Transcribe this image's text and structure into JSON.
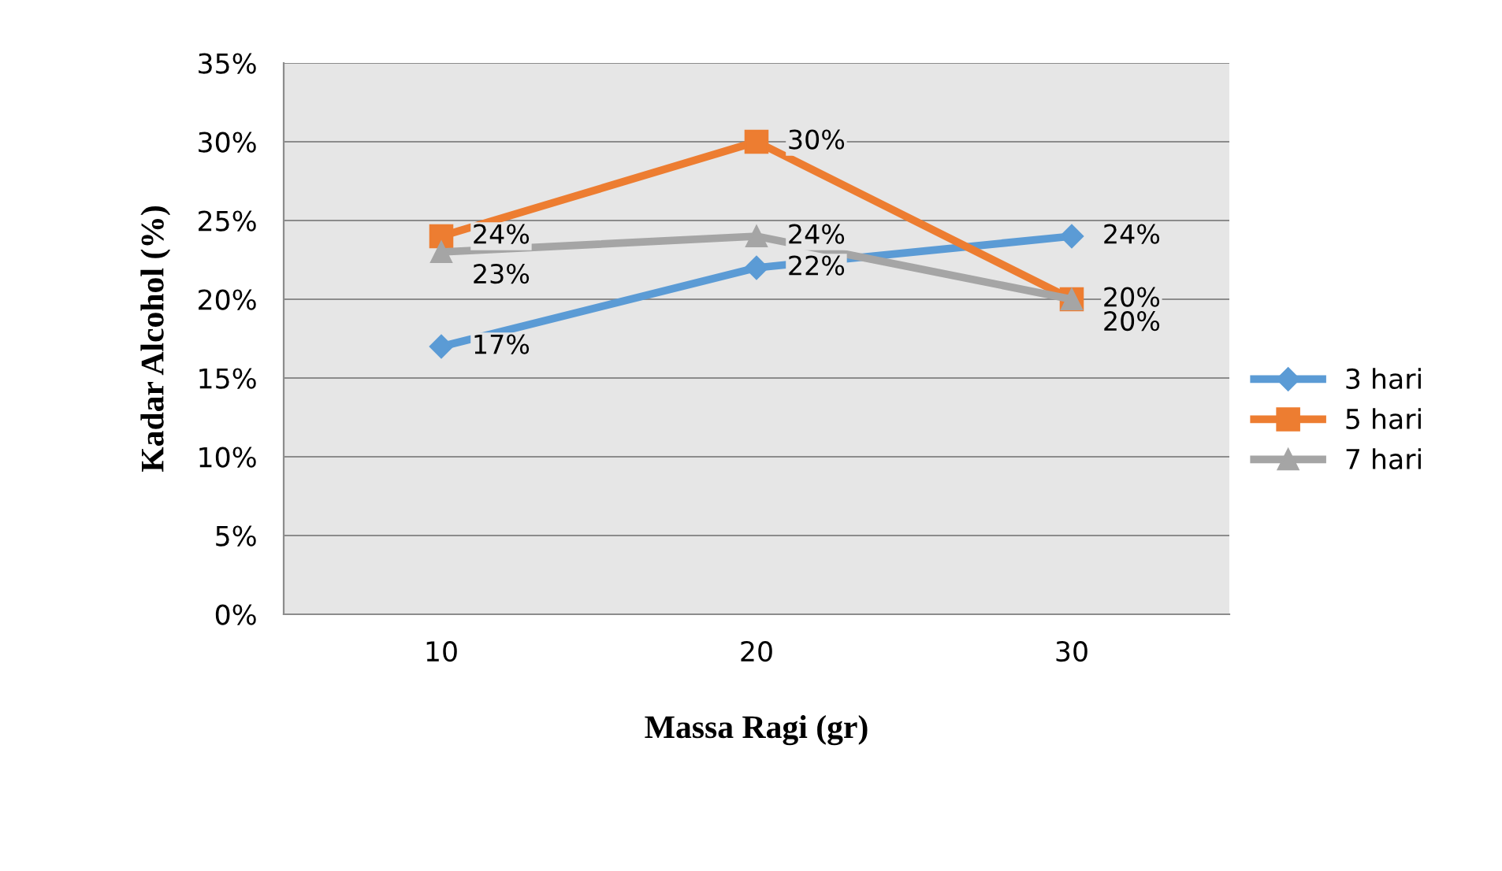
{
  "chart_data": {
    "type": "line",
    "xlabel": "Massa Ragi (gr)",
    "ylabel": "Kadar Alcohol (%)",
    "categories": [
      "10",
      "20",
      "30"
    ],
    "series": [
      {
        "name": "3 hari",
        "color": "#5b9bd5",
        "marker": "diamond",
        "values": [
          17,
          22,
          24
        ],
        "value_labels": [
          "17%",
          "22%",
          "24%"
        ]
      },
      {
        "name": "5 hari",
        "color": "#ed7d31",
        "marker": "square",
        "values": [
          24,
          30,
          20
        ],
        "value_labels": [
          "24%",
          "30%",
          "20%"
        ]
      },
      {
        "name": "7 hari",
        "color": "#a5a5a5",
        "marker": "triangle",
        "values": [
          23,
          24,
          20
        ],
        "value_labels": [
          "23%",
          "24%",
          "20%"
        ]
      }
    ],
    "ylim": [
      0,
      35
    ],
    "yticks": [
      {
        "value": 0,
        "label": "0%"
      },
      {
        "value": 5,
        "label": "5%"
      },
      {
        "value": 10,
        "label": "10%"
      },
      {
        "value": 15,
        "label": "15%"
      },
      {
        "value": 20,
        "label": "20%"
      },
      {
        "value": 25,
        "label": "25%"
      },
      {
        "value": 30,
        "label": "30%"
      },
      {
        "value": 35,
        "label": "35%"
      }
    ],
    "grid": "y",
    "legend": "right",
    "line_style": "solid"
  }
}
